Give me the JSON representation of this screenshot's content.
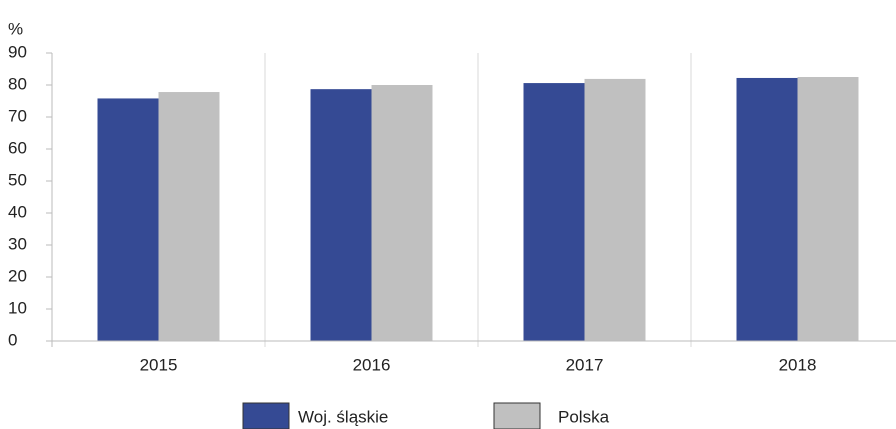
{
  "chart_data": {
    "type": "bar",
    "y_axis_label": "%",
    "categories": [
      "2015",
      "2016",
      "2017",
      "2018"
    ],
    "series": [
      {
        "name": "Woj. śląskie",
        "color": "#354a94",
        "values": [
          75.8,
          78.7,
          80.6,
          82.2
        ]
      },
      {
        "name": "Polska",
        "color": "#c0c0c0",
        "values": [
          77.8,
          80.0,
          81.9,
          82.5
        ]
      }
    ],
    "ylim": [
      0,
      90
    ],
    "yticks": [
      0,
      10,
      20,
      30,
      40,
      50,
      60,
      70,
      80,
      90
    ],
    "category_separators": true,
    "legend": "bottom"
  }
}
